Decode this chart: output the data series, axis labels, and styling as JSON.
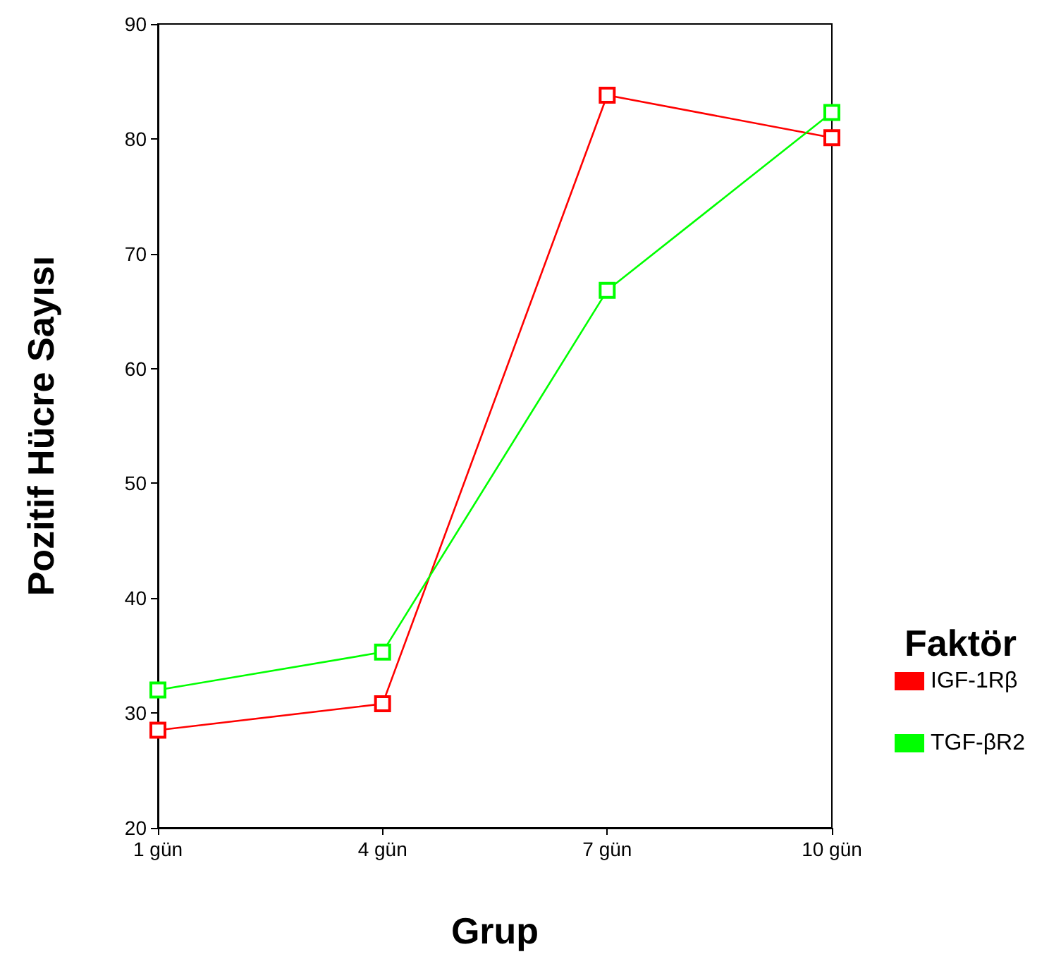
{
  "chart_data": {
    "type": "line",
    "xlabel": "Grup",
    "ylabel": "Pozitif Hücre Sayısı",
    "legend_title": "Faktör",
    "categories": [
      "1 gün",
      "4 gün",
      "7 gün",
      "10 gün"
    ],
    "series": [
      {
        "name": "IGF-1Rβ",
        "color": "#ff0000",
        "values": [
          28.5,
          30.8,
          83.8,
          80.1
        ]
      },
      {
        "name": "TGF-βR2",
        "color": "#00ff00",
        "values": [
          32.0,
          35.3,
          66.8,
          82.3
        ]
      }
    ],
    "ylim": [
      20,
      90
    ],
    "yticks": [
      20,
      30,
      40,
      50,
      60,
      70,
      80,
      90
    ],
    "grid": false,
    "legend": "right",
    "marker": "square",
    "line_style": "solid"
  }
}
